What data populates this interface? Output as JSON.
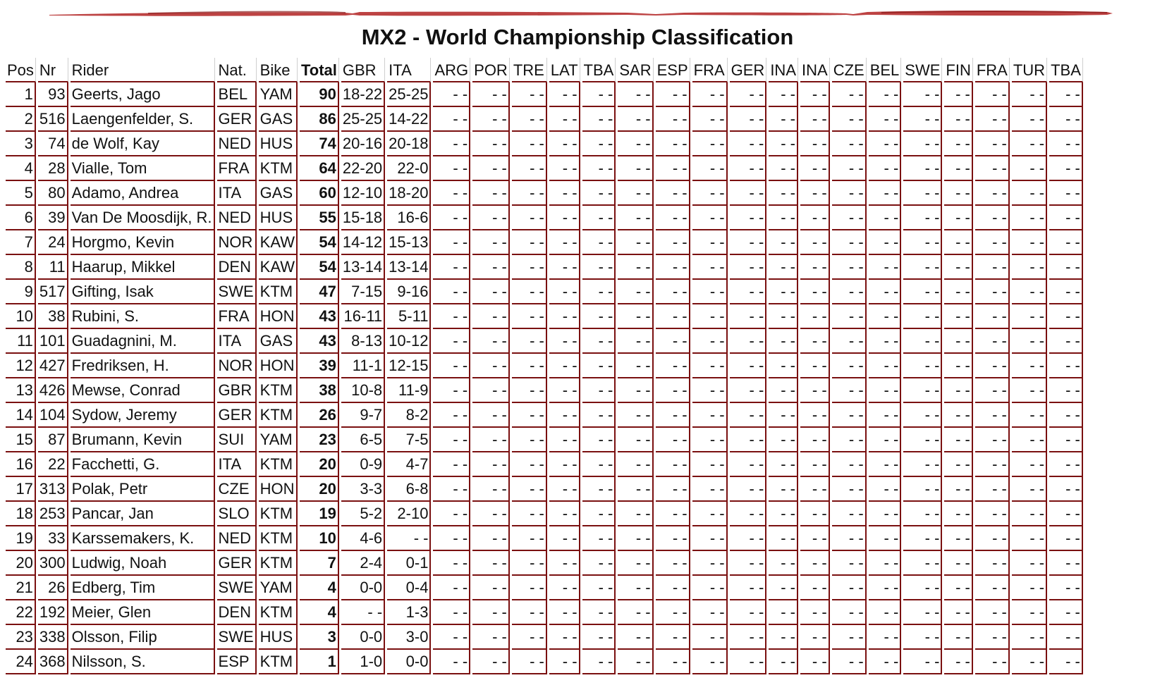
{
  "title": "MX2 - World Championship Classification",
  "colors": {
    "accent": "#7a1010",
    "brush": "#b22222"
  },
  "columns": [
    "Pos",
    "Nr",
    "Rider",
    "Nat.",
    "Bike",
    "Total",
    "GBR",
    "ITA",
    "ARG",
    "POR",
    "TRE",
    "LAT",
    "TBA",
    "SAR",
    "ESP",
    "FRA",
    "GER",
    "INA",
    "INA",
    "CZE",
    "BEL",
    "SWE",
    "FIN",
    "FRA",
    "TUR",
    "TBA"
  ],
  "empty_result": "- -",
  "rows": [
    {
      "pos": "1",
      "nr": "93",
      "rider": "Geerts, Jago",
      "nat": "BEL",
      "bike": "YAM",
      "total": "90",
      "gbr": "18-22",
      "ita": "25-25"
    },
    {
      "pos": "2",
      "nr": "516",
      "rider": "Laengenfelder, S.",
      "nat": "GER",
      "bike": "GAS",
      "total": "86",
      "gbr": "25-25",
      "ita": "14-22"
    },
    {
      "pos": "3",
      "nr": "74",
      "rider": "de Wolf, Kay",
      "nat": "NED",
      "bike": "HUS",
      "total": "74",
      "gbr": "20-16",
      "ita": "20-18"
    },
    {
      "pos": "4",
      "nr": "28",
      "rider": "Vialle, Tom",
      "nat": "FRA",
      "bike": "KTM",
      "total": "64",
      "gbr": "22-20",
      "ita": "22-0"
    },
    {
      "pos": "5",
      "nr": "80",
      "rider": "Adamo, Andrea",
      "nat": "ITA",
      "bike": "GAS",
      "total": "60",
      "gbr": "12-10",
      "ita": "18-20"
    },
    {
      "pos": "6",
      "nr": "39",
      "rider": "Van De Moosdijk, R.",
      "nat": "NED",
      "bike": "HUS",
      "total": "55",
      "gbr": "15-18",
      "ita": "16-6"
    },
    {
      "pos": "7",
      "nr": "24",
      "rider": "Horgmo, Kevin",
      "nat": "NOR",
      "bike": "KAW",
      "total": "54",
      "gbr": "14-12",
      "ita": "15-13"
    },
    {
      "pos": "8",
      "nr": "11",
      "rider": "Haarup, Mikkel",
      "nat": "DEN",
      "bike": "KAW",
      "total": "54",
      "gbr": "13-14",
      "ita": "13-14"
    },
    {
      "pos": "9",
      "nr": "517",
      "rider": "Gifting, Isak",
      "nat": "SWE",
      "bike": "KTM",
      "total": "47",
      "gbr": "7-15",
      "ita": "9-16"
    },
    {
      "pos": "10",
      "nr": "38",
      "rider": "Rubini, S.",
      "nat": "FRA",
      "bike": "HON",
      "total": "43",
      "gbr": "16-11",
      "ita": "5-11"
    },
    {
      "pos": "11",
      "nr": "101",
      "rider": "Guadagnini, M.",
      "nat": "ITA",
      "bike": "GAS",
      "total": "43",
      "gbr": "8-13",
      "ita": "10-12"
    },
    {
      "pos": "12",
      "nr": "427",
      "rider": "Fredriksen, H.",
      "nat": "NOR",
      "bike": "HON",
      "total": "39",
      "gbr": "11-1",
      "ita": "12-15"
    },
    {
      "pos": "13",
      "nr": "426",
      "rider": "Mewse, Conrad",
      "nat": "GBR",
      "bike": "KTM",
      "total": "38",
      "gbr": "10-8",
      "ita": "11-9"
    },
    {
      "pos": "14",
      "nr": "104",
      "rider": "Sydow, Jeremy",
      "nat": "GER",
      "bike": "KTM",
      "total": "26",
      "gbr": "9-7",
      "ita": "8-2"
    },
    {
      "pos": "15",
      "nr": "87",
      "rider": "Brumann, Kevin",
      "nat": "SUI",
      "bike": "YAM",
      "total": "23",
      "gbr": "6-5",
      "ita": "7-5"
    },
    {
      "pos": "16",
      "nr": "22",
      "rider": "Facchetti, G.",
      "nat": "ITA",
      "bike": "KTM",
      "total": "20",
      "gbr": "0-9",
      "ita": "4-7"
    },
    {
      "pos": "17",
      "nr": "313",
      "rider": "Polak, Petr",
      "nat": "CZE",
      "bike": "HON",
      "total": "20",
      "gbr": "3-3",
      "ita": "6-8"
    },
    {
      "pos": "18",
      "nr": "253",
      "rider": "Pancar, Jan",
      "nat": "SLO",
      "bike": "KTM",
      "total": "19",
      "gbr": "5-2",
      "ita": "2-10"
    },
    {
      "pos": "19",
      "nr": "33",
      "rider": "Karssemakers, K.",
      "nat": "NED",
      "bike": "KTM",
      "total": "10",
      "gbr": "4-6",
      "ita": "- -"
    },
    {
      "pos": "20",
      "nr": "300",
      "rider": "Ludwig, Noah",
      "nat": "GER",
      "bike": "KTM",
      "total": "7",
      "gbr": "2-4",
      "ita": "0-1"
    },
    {
      "pos": "21",
      "nr": "26",
      "rider": "Edberg, Tim",
      "nat": "SWE",
      "bike": "YAM",
      "total": "4",
      "gbr": "0-0",
      "ita": "0-4"
    },
    {
      "pos": "22",
      "nr": "192",
      "rider": "Meier, Glen",
      "nat": "DEN",
      "bike": "KTM",
      "total": "4",
      "gbr": "- -",
      "ita": "1-3"
    },
    {
      "pos": "23",
      "nr": "338",
      "rider": "Olsson, Filip",
      "nat": "SWE",
      "bike": "HUS",
      "total": "3",
      "gbr": "0-0",
      "ita": "3-0"
    },
    {
      "pos": "24",
      "nr": "368",
      "rider": "Nilsson, S.",
      "nat": "ESP",
      "bike": "KTM",
      "total": "1",
      "gbr": "1-0",
      "ita": "0-0"
    }
  ]
}
